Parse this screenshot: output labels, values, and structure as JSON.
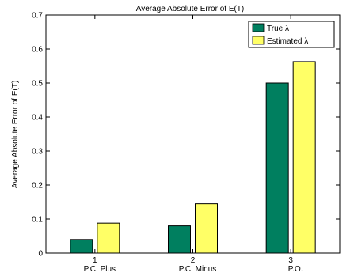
{
  "chart_data": {
    "type": "bar",
    "title": "Average Absolute Error of E(T)",
    "xlabel": "",
    "ylabel": "Average Absolute Error of E(T)",
    "x_ticks": [
      "1",
      "2",
      "3"
    ],
    "categories": [
      "P.C. Plus",
      "P.C. Minus",
      "P.O."
    ],
    "series": [
      {
        "name": "True λ",
        "values": [
          0.04,
          0.08,
          0.5
        ],
        "color": "#007f5f"
      },
      {
        "name": "Estimated λ",
        "values": [
          0.088,
          0.145,
          0.563
        ],
        "color": "#ffff66"
      }
    ],
    "ylim": [
      0,
      0.7
    ],
    "yticks": [
      0,
      0.1,
      0.2,
      0.3,
      0.4,
      0.5,
      0.6,
      0.7
    ],
    "grid": false,
    "legend_position": "top-right"
  }
}
